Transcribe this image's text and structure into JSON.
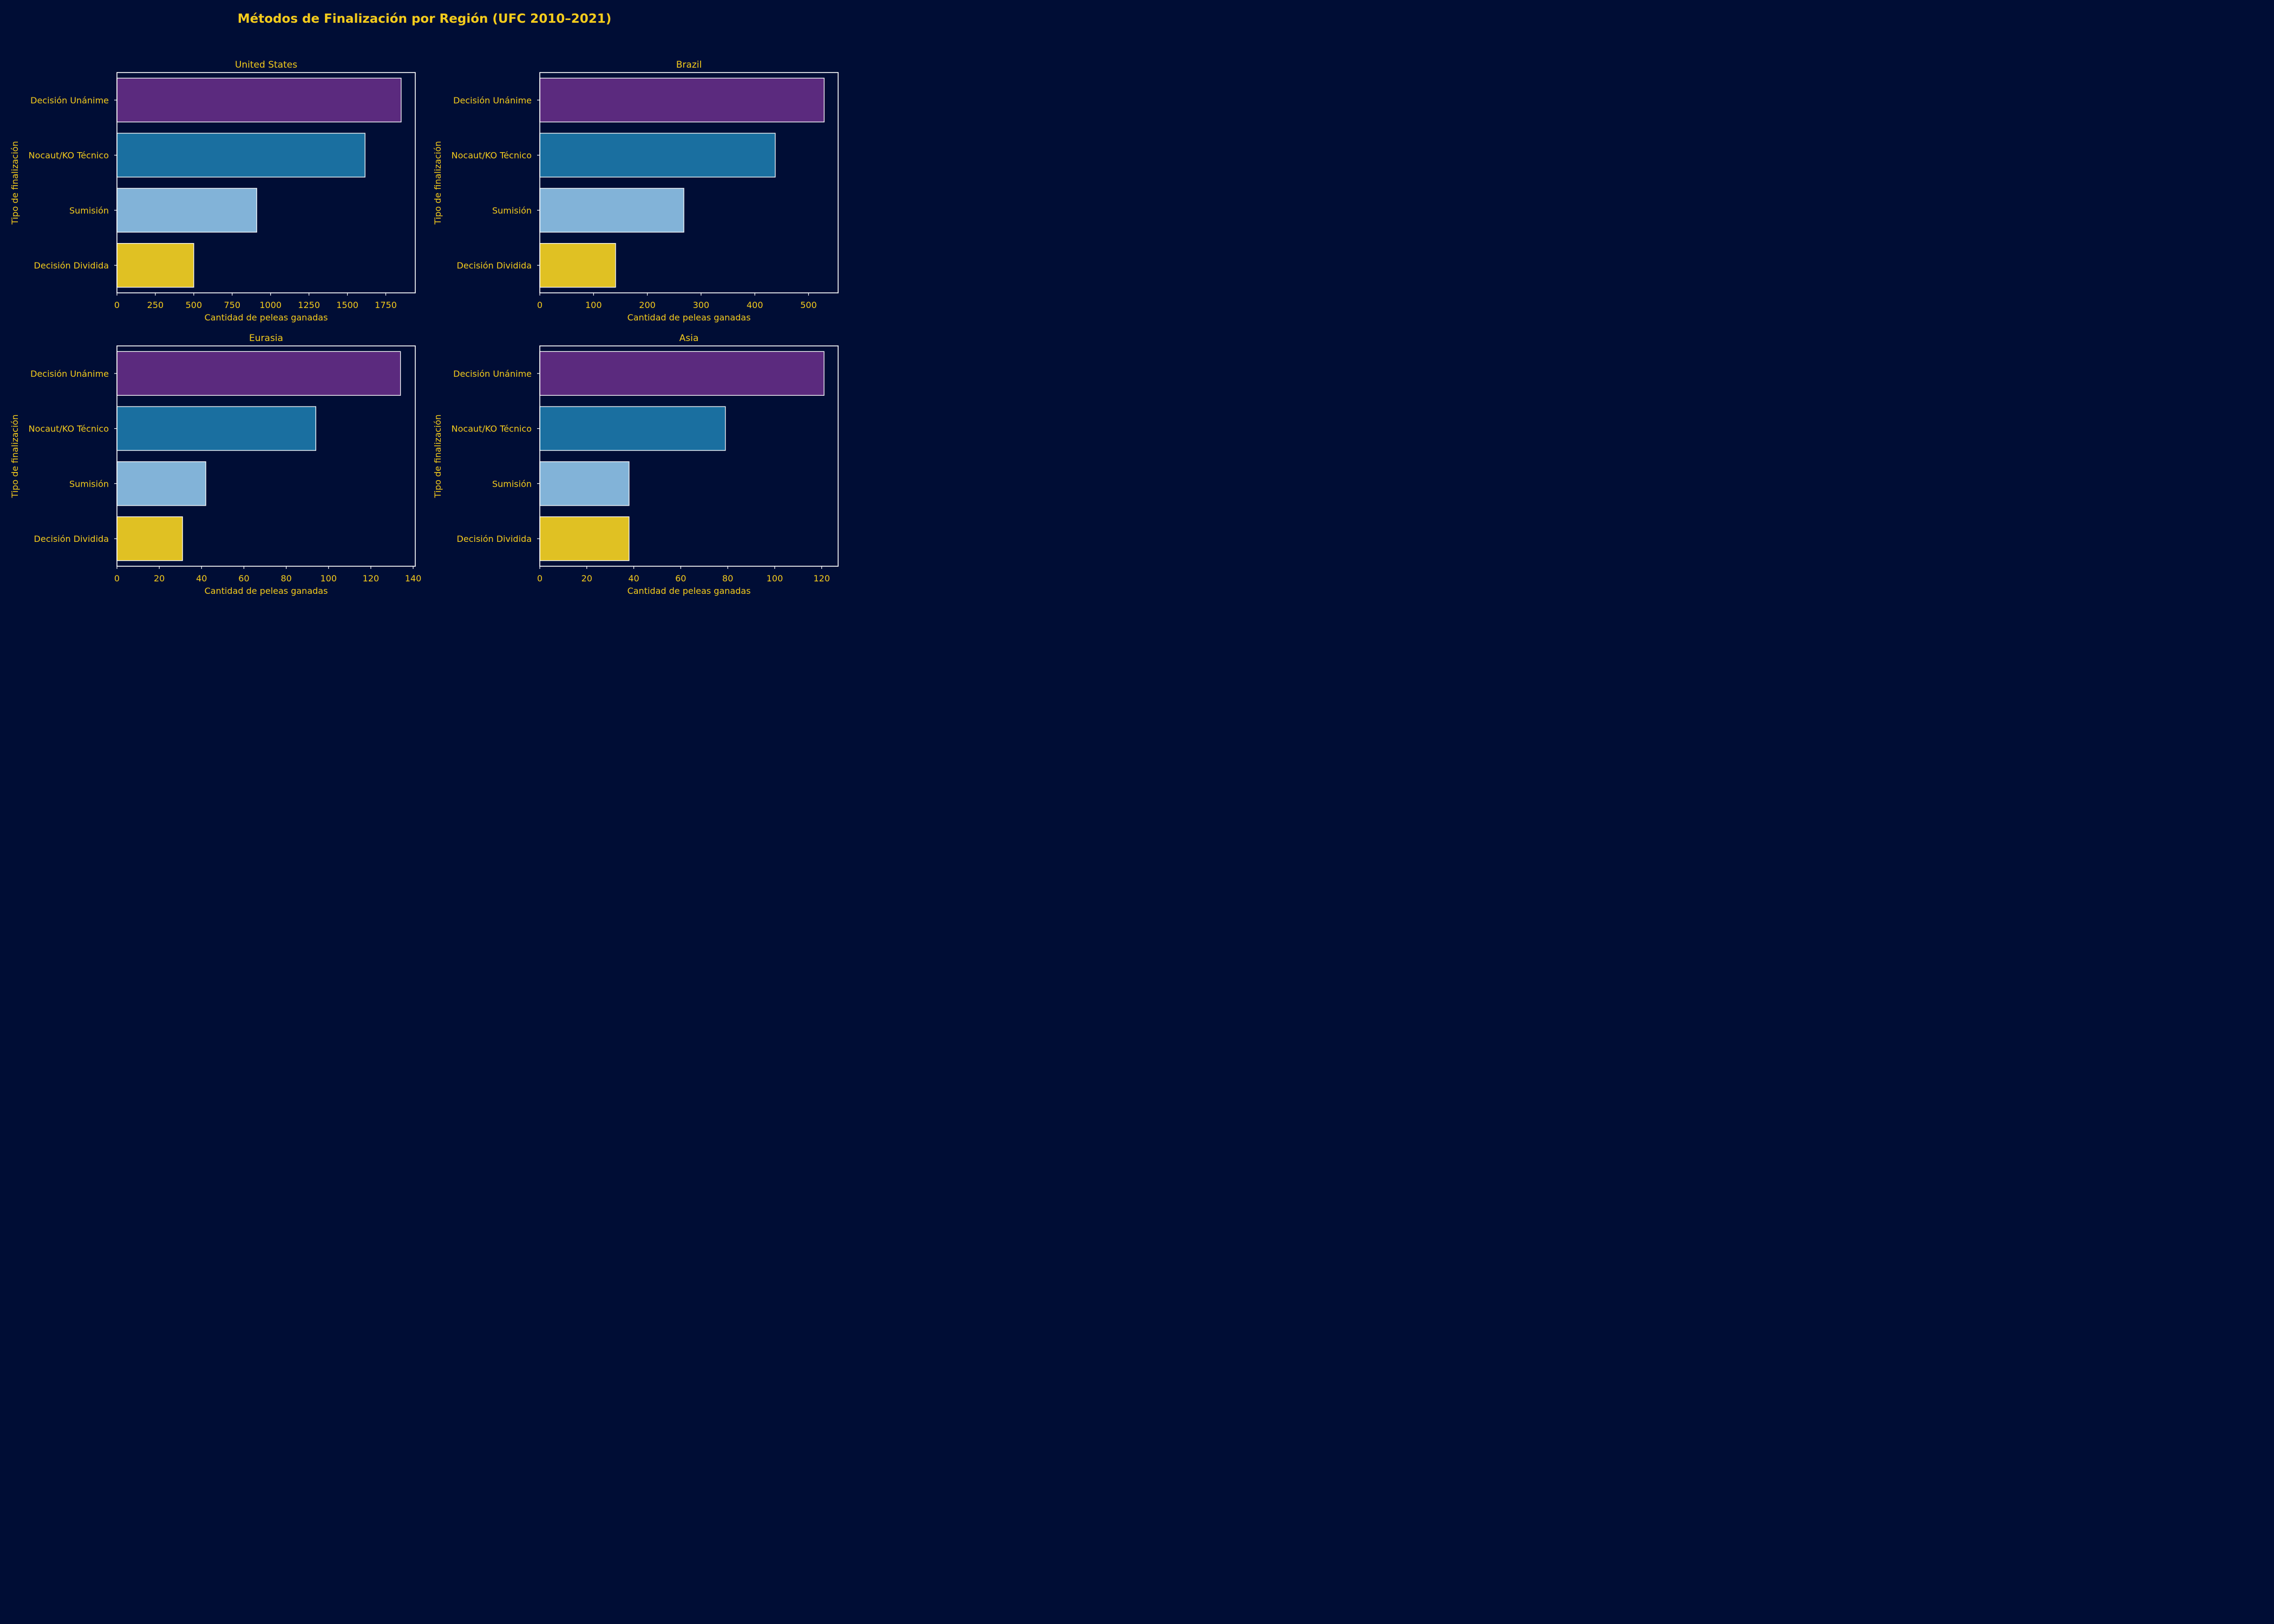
{
  "figure": {
    "title": "Métodos de Finalización por Región (UFC 2010–2021)",
    "background_color": "#000d35",
    "text_color": "#f5cc1c",
    "frame_color": "#ffffff"
  },
  "chart_data": [
    {
      "type": "bar",
      "orientation": "horizontal",
      "title": "United States",
      "categories": [
        "Decisión Unánime",
        "Nocaut/KO Técnico",
        "Sumisión",
        "Decisión Dividida"
      ],
      "values": [
        1850,
        1615,
        910,
        500
      ],
      "colors": [
        "#5b2a7e",
        "#1a6fa0",
        "#82b3d8",
        "#e0c123"
      ],
      "xlabel": "Cantidad de peleas ganadas",
      "ylabel": "Tipo de finalización",
      "xlim": [
        0,
        1942
      ],
      "xticks": [
        0,
        250,
        500,
        750,
        1000,
        1250,
        1500,
        1750
      ],
      "xtick_labels": [
        "0",
        "250",
        "500",
        "750",
        "1000",
        "1250",
        "1500",
        "1750"
      ],
      "grid": false
    },
    {
      "type": "bar",
      "orientation": "horizontal",
      "title": "Brazil",
      "categories": [
        "Decisión Unánime",
        "Nocaut/KO Técnico",
        "Sumisión",
        "Decisión Dividida"
      ],
      "values": [
        529,
        438,
        268,
        141
      ],
      "colors": [
        "#5b2a7e",
        "#1a6fa0",
        "#82b3d8",
        "#e0c123"
      ],
      "xlabel": "Cantidad de peleas ganadas",
      "ylabel": "Tipo de finalización",
      "xlim": [
        0,
        555
      ],
      "xticks": [
        0,
        100,
        200,
        300,
        400,
        500
      ],
      "xtick_labels": [
        "0",
        "100",
        "200",
        "300",
        "400",
        "500"
      ],
      "grid": false
    },
    {
      "type": "bar",
      "orientation": "horizontal",
      "title": "Eurasia",
      "categories": [
        "Decisión Unánime",
        "Nocaut/KO Técnico",
        "Sumisión",
        "Decisión Dividida"
      ],
      "values": [
        134,
        94,
        42,
        31
      ],
      "colors": [
        "#5b2a7e",
        "#1a6fa0",
        "#82b3d8",
        "#e0c123"
      ],
      "xlabel": "Cantidad de peleas ganadas",
      "ylabel": "Tipo de finalización",
      "xlim": [
        0,
        141
      ],
      "xticks": [
        0,
        20,
        40,
        60,
        80,
        100,
        120,
        140
      ],
      "xtick_labels": [
        "0",
        "20",
        "40",
        "60",
        "80",
        "100",
        "120",
        "140"
      ],
      "grid": false
    },
    {
      "type": "bar",
      "orientation": "horizontal",
      "title": "Asia",
      "categories": [
        "Decisión Unánime",
        "Nocaut/KO Técnico",
        "Sumisión",
        "Decisión Dividida"
      ],
      "values": [
        121,
        79,
        38,
        38
      ],
      "colors": [
        "#5b2a7e",
        "#1a6fa0",
        "#82b3d8",
        "#e0c123"
      ],
      "xlabel": "Cantidad de peleas ganadas",
      "ylabel": "Tipo de finalización",
      "xlim": [
        0,
        127
      ],
      "xticks": [
        0,
        20,
        40,
        60,
        80,
        100,
        120
      ],
      "xtick_labels": [
        "0",
        "20",
        "40",
        "60",
        "80",
        "100",
        "120"
      ],
      "grid": false
    }
  ]
}
